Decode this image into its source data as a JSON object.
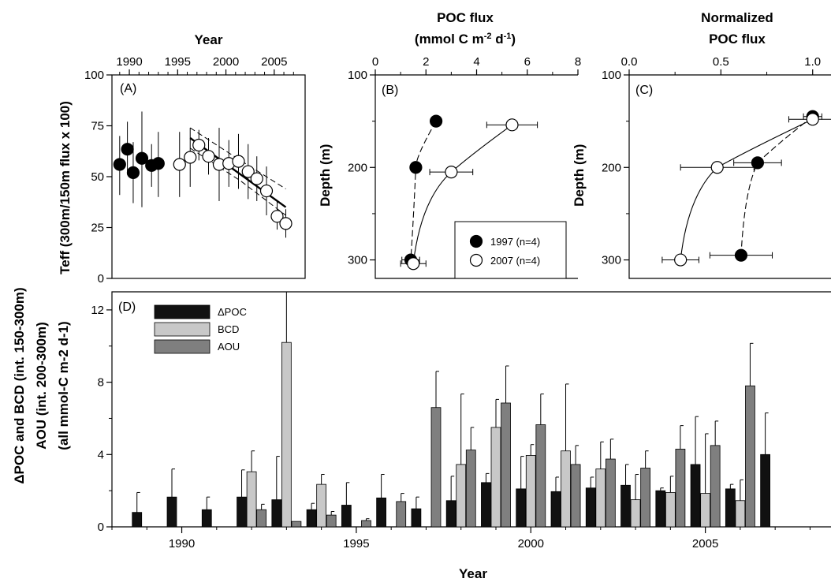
{
  "chart_data": [
    {
      "panel": "(A)",
      "type": "scatter",
      "xlabel": "Year",
      "ylabel": "Teff (300m/150m flux x 100)",
      "xlim": [
        1988.2,
        2008.2
      ],
      "ylim": [
        0,
        100
      ],
      "x_ticks": [
        1990,
        1995,
        2000,
        2005
      ],
      "y_ticks": [
        0,
        25,
        50,
        75,
        100
      ],
      "series": [
        {
          "name": "",
          "marker": "filled",
          "points": [
            {
              "x": 1989.0,
              "y": 56,
              "lo": 41,
              "hi": 70
            },
            {
              "x": 1989.8,
              "y": 63.5,
              "lo": 51,
              "hi": 77
            },
            {
              "x": 1990.4,
              "y": 52,
              "lo": 37,
              "hi": 67
            },
            {
              "x": 1991.3,
              "y": 59,
              "lo": 35,
              "hi": 82
            },
            {
              "x": 1992.3,
              "y": 55.5,
              "lo": 45,
              "hi": 66
            },
            {
              "x": 1993.0,
              "y": 56.5,
              "lo": 40,
              "hi": 72
            }
          ]
        },
        {
          "name": "",
          "marker": "open",
          "points": [
            {
              "x": 1995.2,
              "y": 56,
              "lo": 40,
              "hi": 72
            },
            {
              "x": 1996.3,
              "y": 59.5,
              "lo": 45,
              "hi": 74
            },
            {
              "x": 1997.2,
              "y": 65.5,
              "lo": 58,
              "hi": 73
            },
            {
              "x": 1998.2,
              "y": 60,
              "lo": 51,
              "hi": 69
            },
            {
              "x": 1999.3,
              "y": 56,
              "lo": 38,
              "hi": 74
            },
            {
              "x": 2000.3,
              "y": 56.5,
              "lo": 45,
              "hi": 68
            },
            {
              "x": 2001.3,
              "y": 57.5,
              "lo": 44,
              "hi": 71
            },
            {
              "x": 2002.3,
              "y": 52.5,
              "lo": 39,
              "hi": 66
            },
            {
              "x": 2003.2,
              "y": 49,
              "lo": 38,
              "hi": 60
            },
            {
              "x": 2004.2,
              "y": 43,
              "lo": 31,
              "hi": 55
            },
            {
              "x": 2005.3,
              "y": 30.5,
              "lo": 24,
              "hi": 38
            },
            {
              "x": 2006.2,
              "y": 27,
              "lo": 20,
              "hi": 34
            }
          ]
        }
      ],
      "trend": {
        "x1": 1996.3,
        "y1": 69,
        "x2": 2006.2,
        "y2": 35
      },
      "trend_ci_upper": [
        [
          1996.3,
          74
        ],
        [
          2001.5,
          58
        ],
        [
          2006.2,
          44
        ]
      ],
      "trend_ci_lower": [
        [
          1996.3,
          64
        ],
        [
          2001.5,
          48
        ],
        [
          2006.2,
          31
        ]
      ]
    },
    {
      "panel": "(B)",
      "type": "scatter",
      "xlabel": "POC flux",
      "xlabel_units": "(mmol C m-2 d-1)",
      "ylabel": "Depth (m)",
      "xlim": [
        0,
        8
      ],
      "ylim": [
        100,
        320
      ],
      "x_ticks": [
        0,
        2,
        4,
        6,
        8
      ],
      "y_ticks": [
        100,
        200,
        300
      ],
      "series": [
        {
          "name": "1997 (n=4)",
          "marker": "filled",
          "points": [
            {
              "x": 2.4,
              "y": 150,
              "xerr": 0
            },
            {
              "x": 1.6,
              "y": 200,
              "xerr": 0.2
            },
            {
              "x": 1.4,
              "y": 300,
              "xerr": 0.35
            }
          ]
        },
        {
          "name": "2007 (n=4)",
          "marker": "open",
          "points": [
            {
              "x": 5.4,
              "y": 154,
              "xerr": 1.0
            },
            {
              "x": 3.0,
              "y": 205,
              "xerr": 0.85
            },
            {
              "x": 1.5,
              "y": 304,
              "xerr": 0.5
            }
          ]
        }
      ]
    },
    {
      "panel": "(C)",
      "type": "scatter",
      "xlabel": "Normalized",
      "xlabel2": "POC flux",
      "ylabel": "Depth (m)",
      "xlim": [
        0,
        1.1
      ],
      "ylim": [
        100,
        320
      ],
      "x_ticks": [
        0.0,
        0.5,
        1.0
      ],
      "x_tick_labels": [
        "0.0",
        "0.5",
        "1.0"
      ],
      "y_ticks": [
        100,
        200,
        300
      ],
      "series": [
        {
          "name": "1997 (n=4)",
          "marker": "filled",
          "points": [
            {
              "x": 1.0,
              "y": 145,
              "xerr": 0.05
            },
            {
              "x": 0.7,
              "y": 195,
              "xerr": 0.13
            },
            {
              "x": 0.61,
              "y": 295,
              "xerr": 0.17
            }
          ]
        },
        {
          "name": "2007 (n=4)",
          "marker": "open",
          "points": [
            {
              "x": 1.0,
              "y": 148,
              "xerr": 0.13
            },
            {
              "x": 0.48,
              "y": 200,
              "xerr": 0.2
            },
            {
              "x": 0.28,
              "y": 300,
              "xerr": 0.1
            }
          ]
        }
      ]
    },
    {
      "panel": "(D)",
      "type": "bar",
      "xlabel": "Year",
      "ylabel_lines": [
        "ΔPOC and BCD (int. 150-300m)",
        "AOU (int. 200-300m)",
        "(all mmol-C m-2 d-1)"
      ],
      "xlim": [
        1988,
        2008.6
      ],
      "ylim": [
        0,
        13
      ],
      "x_ticks": [
        1990,
        1995,
        2000,
        2005
      ],
      "y_ticks": [
        0,
        4,
        8,
        12
      ],
      "colors": {
        "dPOC": "#111111",
        "BCD": "#c8c8c8",
        "AOU": "#7f7f7f"
      },
      "legend": [
        {
          "key": "dPOC",
          "name": "ΔPOC"
        },
        {
          "key": "BCD",
          "name": "BCD"
        },
        {
          "key": "AOU",
          "name": "AOU"
        }
      ],
      "groups": [
        {
          "x": 1989.0,
          "dPOC": 0.8,
          "dPOC_err": 1.1
        },
        {
          "x": 1990.0,
          "dPOC": 1.65,
          "dPOC_err": 1.55
        },
        {
          "x": 1991.0,
          "dPOC": 0.95,
          "dPOC_err": 0.7
        },
        {
          "x": 1992.0,
          "dPOC": 1.65,
          "dPOC_err": 1.5,
          "BCD": 3.05,
          "BCD_err": 1.15,
          "AOU": 0.95,
          "AOU_err": 0.3
        },
        {
          "x": 1993.0,
          "dPOC": 1.5,
          "dPOC_err": 2.4,
          "BCD": 10.2,
          "BCD_err": 3.0,
          "AOU": 0.3,
          "AOU_err": 0
        },
        {
          "x": 1994.0,
          "dPOC": 0.95,
          "dPOC_err": 0.35,
          "BCD": 2.35,
          "BCD_err": 0.55,
          "AOU": 0.65,
          "AOU_err": 0.2
        },
        {
          "x": 1995.0,
          "dPOC": 1.2,
          "dPOC_err": 1.25,
          "AOU": 0.35,
          "AOU_err": 0.1
        },
        {
          "x": 1996.0,
          "dPOC": 1.6,
          "dPOC_err": 1.3,
          "AOU": 1.4,
          "AOU_err": 0.45
        },
        {
          "x": 1997.0,
          "dPOC": 1.0,
          "dPOC_err": 0.65,
          "AOU": 6.6,
          "AOU_err": 2.0
        },
        {
          "x": 1998.0,
          "dPOC": 1.45,
          "dPOC_err": 1.35,
          "BCD": 3.45,
          "BCD_err": 3.9,
          "AOU": 4.25,
          "AOU_err": 1.25
        },
        {
          "x": 1999.0,
          "dPOC": 2.45,
          "dPOC_err": 0.5,
          "BCD": 5.5,
          "BCD_err": 1.55,
          "AOU": 6.85,
          "AOU_err": 2.05
        },
        {
          "x": 2000.0,
          "dPOC": 2.1,
          "dPOC_err": 1.8,
          "BCD": 3.95,
          "BCD_err": 0.6,
          "AOU": 5.65,
          "AOU_err": 1.7
        },
        {
          "x": 2001.0,
          "dPOC": 1.95,
          "dPOC_err": 0.8,
          "BCD": 4.2,
          "BCD_err": 3.7,
          "AOU": 3.45,
          "AOU_err": 1.05
        },
        {
          "x": 2002.0,
          "dPOC": 2.15,
          "dPOC_err": 0.6,
          "BCD": 3.2,
          "BCD_err": 1.5,
          "AOU": 3.75,
          "AOU_err": 1.1
        },
        {
          "x": 2003.0,
          "dPOC": 2.3,
          "dPOC_err": 1.15,
          "BCD": 1.5,
          "BCD_err": 1.4,
          "AOU": 3.25,
          "AOU_err": 0.95
        },
        {
          "x": 2004.0,
          "dPOC": 2.0,
          "dPOC_err": 0.15,
          "BCD": 1.9,
          "BCD_err": 0.9,
          "AOU": 4.3,
          "AOU_err": 1.3
        },
        {
          "x": 2005.0,
          "dPOC": 3.45,
          "dPOC_err": 2.65,
          "BCD": 1.85,
          "BCD_err": 3.3,
          "AOU": 4.5,
          "AOU_err": 1.35
        },
        {
          "x": 2006.0,
          "dPOC": 2.1,
          "dPOC_err": 0.25,
          "BCD": 1.45,
          "BCD_err": 1.15,
          "AOU": 7.8,
          "AOU_err": 2.35
        },
        {
          "x": 2007.0,
          "dPOC": 4.0,
          "dPOC_err": 2.3
        }
      ]
    }
  ]
}
